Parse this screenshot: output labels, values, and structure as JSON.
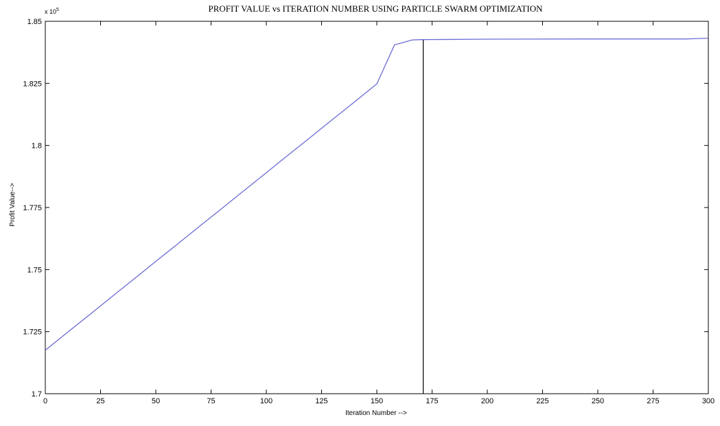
{
  "chart_data": {
    "type": "line",
    "title": "PROFIT VALUE vs ITERATION NUMBER USING PARTICLE SWARM OPTIMIZATION",
    "xlabel": "Iteration Number -->",
    "ylabel": "Profit Value-->",
    "y_multiplier": {
      "base": "x 10",
      "exponent": "5"
    },
    "xlim": [
      0,
      300
    ],
    "ylim": [
      1.7,
      1.85
    ],
    "xticks": [
      0,
      25,
      50,
      75,
      100,
      125,
      150,
      175,
      200,
      225,
      250,
      275,
      300
    ],
    "yticks": [
      1.7,
      1.725,
      1.75,
      1.775,
      1.8,
      1.825,
      1.85
    ],
    "ytick_labels": [
      "1.7",
      "1.725",
      "1.75",
      "1.775",
      "1.8",
      "1.825",
      "1.85"
    ],
    "grid": false,
    "series": [
      {
        "color": "#6b6bd6",
        "x": [
          0,
          10,
          20,
          30,
          40,
          50,
          60,
          70,
          80,
          90,
          100,
          110,
          120,
          130,
          140,
          150,
          158,
          162,
          166,
          170,
          200,
          250,
          290,
          300
        ],
        "y": [
          1.7175,
          1.7247,
          1.7318,
          1.739,
          1.7461,
          1.7533,
          1.7604,
          1.7676,
          1.7747,
          1.7819,
          1.789,
          1.7962,
          1.8033,
          1.8105,
          1.8176,
          1.8248,
          1.8405,
          1.8415,
          1.8425,
          1.8426,
          1.8428,
          1.8429,
          1.8429,
          1.8432
        ]
      },
      {
        "color": "#000000",
        "x": [
          171,
          171
        ],
        "y": [
          1.7,
          1.8425
        ]
      }
    ]
  }
}
